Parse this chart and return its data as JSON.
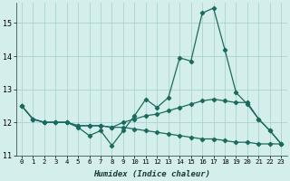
{
  "xlabel": "Humidex (Indice chaleur)",
  "bg_color": "#d4eeec",
  "grid_color": "#a8d4d0",
  "line_color": "#1a6b5e",
  "x": [
    0,
    1,
    2,
    3,
    4,
    5,
    6,
    7,
    8,
    9,
    10,
    11,
    12,
    13,
    14,
    15,
    16,
    17,
    18,
    19,
    20,
    21,
    22,
    23
  ],
  "line_jagged": [
    12.5,
    12.1,
    12.0,
    12.0,
    12.0,
    11.85,
    11.6,
    11.75,
    11.3,
    11.75,
    12.2,
    12.7,
    12.45,
    12.75,
    13.95,
    13.85,
    15.3,
    15.45,
    14.2,
    12.9,
    12.55,
    12.1,
    11.75,
    11.35
  ],
  "line_upper": [
    12.5,
    12.1,
    12.0,
    12.0,
    12.0,
    11.9,
    11.9,
    11.9,
    11.85,
    12.0,
    12.1,
    12.2,
    12.25,
    12.35,
    12.45,
    12.55,
    12.65,
    12.7,
    12.65,
    12.6,
    12.6,
    12.1,
    11.75,
    11.35
  ],
  "line_lower": [
    12.5,
    12.1,
    12.0,
    12.0,
    12.0,
    11.9,
    11.9,
    11.9,
    11.85,
    11.85,
    11.8,
    11.75,
    11.7,
    11.65,
    11.6,
    11.55,
    11.5,
    11.5,
    11.45,
    11.4,
    11.4,
    11.35,
    11.35,
    11.35
  ],
  "ylim": [
    11.0,
    15.6
  ],
  "yticks": [
    11,
    12,
    13,
    14,
    15
  ],
  "xlim": [
    -0.5,
    23.5
  ]
}
